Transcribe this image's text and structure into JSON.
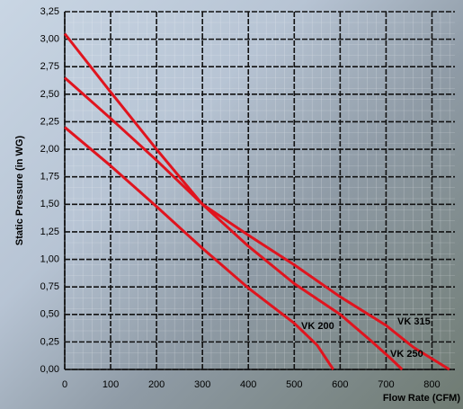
{
  "chart_data": {
    "type": "line",
    "x_label": "Flow Rate (CFM)",
    "y_label": "Static Pressure (in WG)",
    "xlim": [
      0,
      850
    ],
    "xticks": [
      0,
      100,
      200,
      300,
      400,
      500,
      600,
      700,
      800
    ],
    "ylim": [
      0,
      3.25
    ],
    "yticks": [
      {
        "value": 0,
        "label": "0,00"
      },
      {
        "value": 0.25,
        "label": "0,25"
      },
      {
        "value": 0.5,
        "label": "0,50"
      },
      {
        "value": 0.75,
        "label": "0,75"
      },
      {
        "value": 1,
        "label": "1,00"
      },
      {
        "value": 1.25,
        "label": "1,25"
      },
      {
        "value": 1.5,
        "label": "1,50"
      },
      {
        "value": 1.75,
        "label": "1,75"
      },
      {
        "value": 2,
        "label": "2,00"
      },
      {
        "value": 2.25,
        "label": "2,25"
      },
      {
        "value": 2.5,
        "label": "2,50"
      },
      {
        "value": 2.75,
        "label": "2,75"
      },
      {
        "value": 3,
        "label": "3,00"
      },
      {
        "value": 3.25,
        "label": "3,25"
      }
    ],
    "grid": true,
    "series": [
      {
        "name": "VK 200",
        "color": "#e0141e",
        "x": [
          0,
          100,
          200,
          300,
          400,
          500,
          550,
          585
        ],
        "values": [
          2.2,
          1.85,
          1.48,
          1.1,
          0.74,
          0.42,
          0.22,
          0
        ]
      },
      {
        "name": "VK 315",
        "color": "#e0141e",
        "x": [
          0,
          100,
          200,
          300,
          400,
          500,
          600,
          700,
          760,
          838
        ],
        "values": [
          2.65,
          2.28,
          1.9,
          1.5,
          1.22,
          0.95,
          0.66,
          0.4,
          0.2,
          0
        ]
      },
      {
        "name": "VK 250",
        "color": "#e0141e",
        "x": [
          0,
          100,
          200,
          300,
          400,
          500,
          600,
          670,
          710,
          735
        ],
        "values": [
          3.05,
          2.52,
          2.0,
          1.5,
          1.12,
          0.78,
          0.5,
          0.25,
          0.1,
          0
        ]
      }
    ]
  }
}
